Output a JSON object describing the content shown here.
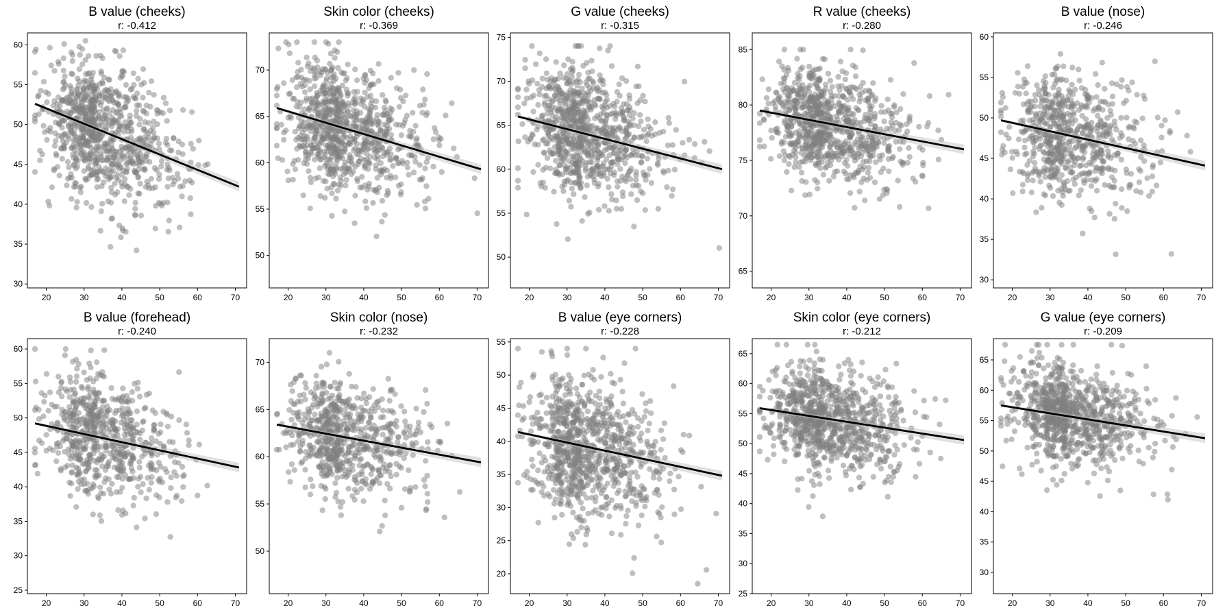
{
  "chart_data": [
    {
      "type": "scatter",
      "title": "B value (cheeks)",
      "subtitle": "r: -0.412",
      "xlim": [
        15,
        73
      ],
      "ylim": [
        29.5,
        61.5
      ],
      "xticks": [
        20,
        30,
        40,
        50,
        60,
        70
      ],
      "yticks": [
        30,
        35,
        40,
        45,
        50,
        55,
        60
      ],
      "r": -0.412,
      "fit": {
        "x": [
          17,
          71
        ],
        "y": [
          52.6,
          42.2
        ]
      },
      "cloud": {
        "x_mean": 34,
        "x_sd": 9,
        "y_sd": 4.2,
        "n": 900,
        "x_range": [
          17,
          71
        ],
        "y_range": [
          31,
          60.5
        ]
      },
      "grid": false,
      "point_color": "#808080",
      "line_color": "#000000"
    },
    {
      "type": "scatter",
      "title": "Skin color (cheeks)",
      "subtitle": "r: -0.369",
      "xlim": [
        15,
        73
      ],
      "ylim": [
        46.5,
        74
      ],
      "xticks": [
        20,
        30,
        40,
        50,
        60,
        70
      ],
      "yticks": [
        50,
        55,
        60,
        65,
        70
      ],
      "r": -0.369,
      "fit": {
        "x": [
          17,
          71
        ],
        "y": [
          65.9,
          59.3
        ]
      },
      "cloud": {
        "x_mean": 34,
        "x_sd": 9,
        "y_sd": 3.5,
        "n": 900,
        "x_range": [
          17,
          71
        ],
        "y_range": [
          48,
          73
        ]
      },
      "grid": false,
      "point_color": "#808080",
      "line_color": "#000000"
    },
    {
      "type": "scatter",
      "title": "G value (cheeks)",
      "subtitle": "r: -0.315",
      "xlim": [
        15,
        73
      ],
      "ylim": [
        46.5,
        75.5
      ],
      "xticks": [
        20,
        30,
        40,
        50,
        60,
        70
      ],
      "yticks": [
        50,
        55,
        60,
        65,
        70,
        75
      ],
      "r": -0.315,
      "fit": {
        "x": [
          17,
          71
        ],
        "y": [
          66.0,
          60.0
        ]
      },
      "cloud": {
        "x_mean": 34,
        "x_sd": 9,
        "y_sd": 3.8,
        "n": 900,
        "x_range": [
          17,
          71
        ],
        "y_range": [
          47.5,
          74
        ]
      },
      "grid": false,
      "point_color": "#808080",
      "line_color": "#000000"
    },
    {
      "type": "scatter",
      "title": "R value (cheeks)",
      "subtitle": "r: -0.280",
      "xlim": [
        15,
        73
      ],
      "ylim": [
        63.5,
        86.5
      ],
      "xticks": [
        20,
        30,
        40,
        50,
        60,
        70
      ],
      "yticks": [
        65,
        70,
        75,
        80,
        85
      ],
      "r": -0.28,
      "fit": {
        "x": [
          17,
          71
        ],
        "y": [
          79.5,
          76.0
        ]
      },
      "cloud": {
        "x_mean": 34,
        "x_sd": 9,
        "y_sd": 2.5,
        "n": 900,
        "x_range": [
          17,
          71
        ],
        "y_range": [
          64.5,
          85
        ]
      },
      "grid": false,
      "point_color": "#808080",
      "line_color": "#000000"
    },
    {
      "type": "scatter",
      "title": "B value (nose)",
      "subtitle": "r: -0.246",
      "xlim": [
        15,
        73
      ],
      "ylim": [
        29,
        60.5
      ],
      "xticks": [
        20,
        30,
        40,
        50,
        60,
        70
      ],
      "yticks": [
        30,
        35,
        40,
        45,
        50,
        55,
        60
      ],
      "r": -0.246,
      "fit": {
        "x": [
          17,
          71
        ],
        "y": [
          49.7,
          44.1
        ]
      },
      "cloud": {
        "x_mean": 34,
        "x_sd": 9,
        "y_sd": 4.0,
        "n": 700,
        "x_range": [
          17,
          71
        ],
        "y_range": [
          30,
          59
        ]
      },
      "grid": false,
      "point_color": "#808080",
      "line_color": "#000000"
    },
    {
      "type": "scatter",
      "title": "B value (forehead)",
      "subtitle": "r: -0.240",
      "xlim": [
        15,
        73
      ],
      "ylim": [
        24.5,
        61.5
      ],
      "xticks": [
        20,
        30,
        40,
        50,
        60,
        70
      ],
      "yticks": [
        25,
        30,
        35,
        40,
        45,
        50,
        55,
        60
      ],
      "r": -0.24,
      "fit": {
        "x": [
          17,
          71
        ],
        "y": [
          49.2,
          42.8
        ]
      },
      "cloud": {
        "x_mean": 34,
        "x_sd": 9,
        "y_sd": 4.5,
        "n": 700,
        "x_range": [
          17,
          71
        ],
        "y_range": [
          26,
          60
        ]
      },
      "grid": false,
      "point_color": "#808080",
      "line_color": "#000000"
    },
    {
      "type": "scatter",
      "title": "Skin color (nose)",
      "subtitle": "r: -0.232",
      "xlim": [
        15,
        73
      ],
      "ylim": [
        45.5,
        72.5
      ],
      "xticks": [
        20,
        30,
        40,
        50,
        60,
        70
      ],
      "yticks": [
        50,
        55,
        60,
        65,
        70
      ],
      "r": -0.232,
      "fit": {
        "x": [
          17,
          71
        ],
        "y": [
          63.4,
          59.4
        ]
      },
      "cloud": {
        "x_mean": 34,
        "x_sd": 9,
        "y_sd": 3.0,
        "n": 700,
        "x_range": [
          17,
          71
        ],
        "y_range": [
          47,
          71
        ]
      },
      "grid": false,
      "point_color": "#808080",
      "line_color": "#000000"
    },
    {
      "type": "scatter",
      "title": "B value (eye corners)",
      "subtitle": "r: -0.228",
      "xlim": [
        15,
        73
      ],
      "ylim": [
        17,
        55.5
      ],
      "xticks": [
        20,
        30,
        40,
        50,
        60,
        70
      ],
      "yticks": [
        20,
        25,
        30,
        35,
        40,
        45,
        50,
        55
      ],
      "r": -0.228,
      "fit": {
        "x": [
          17,
          71
        ],
        "y": [
          41.4,
          34.8
        ]
      },
      "cloud": {
        "x_mean": 34,
        "x_sd": 9,
        "y_sd": 5.5,
        "n": 900,
        "x_range": [
          17,
          71
        ],
        "y_range": [
          18.5,
          54
        ]
      },
      "grid": false,
      "point_color": "#808080",
      "line_color": "#000000"
    },
    {
      "type": "scatter",
      "title": "Skin color (eye corners)",
      "subtitle": "r: -0.212",
      "xlim": [
        15,
        73
      ],
      "ylim": [
        25,
        67.5
      ],
      "xticks": [
        20,
        30,
        40,
        50,
        60,
        70
      ],
      "yticks": [
        25,
        30,
        35,
        40,
        45,
        50,
        55,
        60,
        65
      ],
      "r": -0.212,
      "fit": {
        "x": [
          17,
          71
        ],
        "y": [
          55.9,
          50.6
        ]
      },
      "cloud": {
        "x_mean": 34,
        "x_sd": 9,
        "y_sd": 4.3,
        "n": 900,
        "x_range": [
          17,
          71
        ],
        "y_range": [
          26.5,
          66.5
        ]
      },
      "grid": false,
      "point_color": "#808080",
      "line_color": "#000000"
    },
    {
      "type": "scatter",
      "title": "G value (eye corners)",
      "subtitle": "r: -0.209",
      "xlim": [
        15,
        73
      ],
      "ylim": [
        26.5,
        68.5
      ],
      "xticks": [
        20,
        30,
        40,
        50,
        60,
        70
      ],
      "yticks": [
        30,
        35,
        40,
        45,
        50,
        55,
        60,
        65
      ],
      "r": -0.209,
      "fit": {
        "x": [
          17,
          71
        ],
        "y": [
          57.5,
          52.1
        ]
      },
      "cloud": {
        "x_mean": 34,
        "x_sd": 9,
        "y_sd": 4.3,
        "n": 900,
        "x_range": [
          17,
          71
        ],
        "y_range": [
          28,
          67.5
        ]
      },
      "grid": false,
      "point_color": "#808080",
      "line_color": "#000000"
    }
  ]
}
